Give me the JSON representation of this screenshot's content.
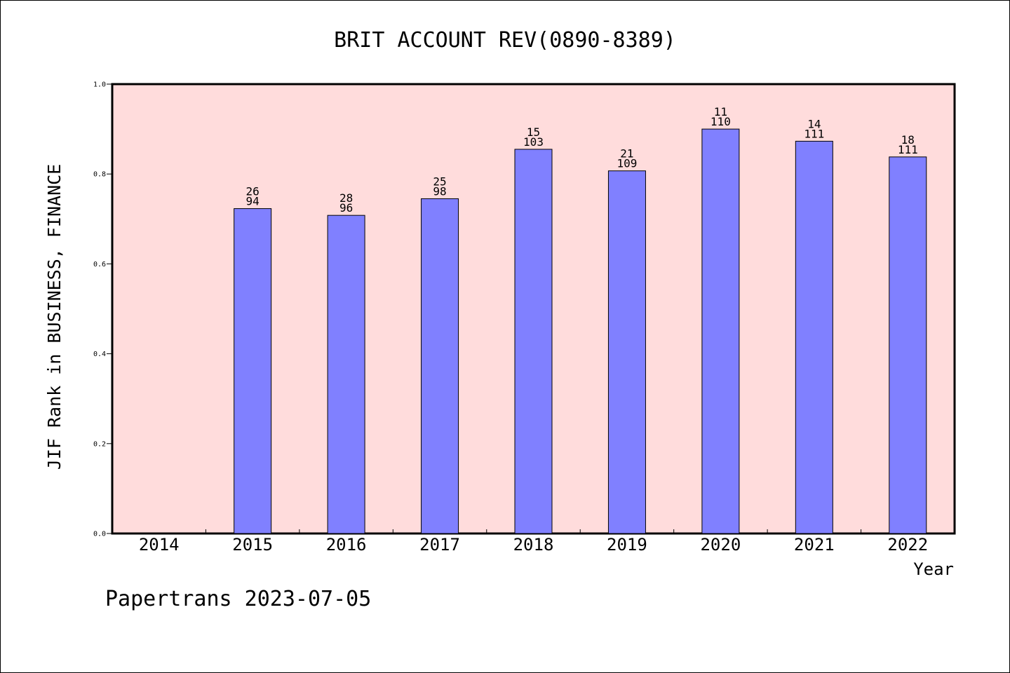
{
  "chart_data": {
    "type": "bar",
    "title": "BRIT ACCOUNT REV(0890-8389)",
    "xlabel": "Year",
    "ylabel": "JIF Rank in BUSINESS, FINANCE",
    "footer": "Papertrans 2023-07-05",
    "categories": [
      "2014",
      "2015",
      "2016",
      "2017",
      "2018",
      "2019",
      "2020",
      "2021",
      "2022"
    ],
    "values": [
      null,
      0.723,
      0.708,
      0.745,
      0.855,
      0.807,
      0.9,
      0.873,
      0.838
    ],
    "rank": [
      null,
      26,
      28,
      25,
      15,
      21,
      11,
      14,
      18
    ],
    "total": [
      null,
      94,
      96,
      98,
      103,
      109,
      110,
      111,
      111
    ],
    "ylim": [
      0,
      1.0
    ],
    "yticks": [
      "0.0",
      "0.2",
      "0.4",
      "0.6",
      "0.8",
      "1.0"
    ],
    "grid": false,
    "colors": {
      "plot_background": "#ffdcdc",
      "bar_fill": "#8080ff",
      "bar_stroke": "#000000"
    }
  }
}
